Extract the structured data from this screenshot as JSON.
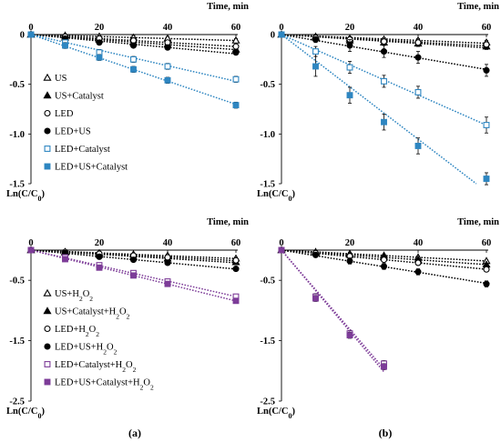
{
  "figure": {
    "panel_tags": [
      "(a)",
      "(b)"
    ]
  },
  "chart_data": [
    {
      "type": "line",
      "xlabel": "Time, min",
      "ylabel": "Ln(C/C0)",
      "ylabel_main": "Ln(C/C",
      "ylabel_sub": "0",
      "ylabel_tail": ")",
      "xlim": [
        0,
        60
      ],
      "ylim": [
        -1.5,
        0
      ],
      "x_ticks": [
        0,
        20,
        40,
        60
      ],
      "y_ticks": [
        0,
        -0.5,
        -1.0,
        -1.5
      ],
      "y_tick_labels": [
        "0",
        "-0.5",
        "-1.0",
        "-1.5"
      ],
      "legend_position": "left",
      "series": [
        {
          "name": "US",
          "marker": "triangle-open",
          "color": "#000000",
          "x": [
            0,
            10,
            20,
            30,
            40,
            60
          ],
          "y": [
            0,
            -0.01,
            -0.02,
            -0.03,
            -0.04,
            -0.06
          ],
          "err": [
            0.01,
            0.01,
            0.02,
            0.02,
            0.02,
            0.02
          ]
        },
        {
          "name": "US+Catalyst",
          "marker": "triangle-filled",
          "color": "#000000",
          "x": [
            0,
            10,
            20,
            30,
            40,
            60
          ],
          "y": [
            0,
            -0.03,
            -0.05,
            -0.08,
            -0.1,
            -0.15
          ],
          "err": [
            0.01,
            0.02,
            0.02,
            0.02,
            0.02,
            0.02
          ]
        },
        {
          "name": "LED",
          "marker": "circle-open",
          "color": "#000000",
          "x": [
            0,
            10,
            20,
            30,
            40,
            60
          ],
          "y": [
            0,
            -0.02,
            -0.04,
            -0.06,
            -0.08,
            -0.12
          ],
          "err": [
            0.01,
            0.02,
            0.02,
            0.02,
            0.02,
            0.02
          ]
        },
        {
          "name": "LED+US",
          "marker": "circle-filled",
          "color": "#000000",
          "x": [
            0,
            10,
            20,
            30,
            40,
            60
          ],
          "y": [
            0,
            -0.04,
            -0.08,
            -0.11,
            -0.13,
            -0.18
          ],
          "err": [
            0.01,
            0.02,
            0.02,
            0.02,
            0.02,
            0.02
          ]
        },
        {
          "name": "LED+Catalyst",
          "marker": "square-open",
          "color": "#2e86c1",
          "x": [
            0,
            10,
            20,
            30,
            40,
            60
          ],
          "y": [
            0,
            -0.08,
            -0.18,
            -0.25,
            -0.32,
            -0.45
          ],
          "err": [
            0.01,
            0.03,
            0.03,
            0.03,
            0.03,
            0.03
          ]
        },
        {
          "name": "LED+US+Catalyst",
          "marker": "square-filled",
          "color": "#2e86c1",
          "x": [
            0,
            10,
            20,
            30,
            40,
            60
          ],
          "y": [
            0,
            -0.11,
            -0.23,
            -0.35,
            -0.46,
            -0.71
          ],
          "err": [
            0.01,
            0.03,
            0.03,
            0.03,
            0.03,
            0.03
          ]
        }
      ]
    },
    {
      "type": "line",
      "xlabel": "Time, min",
      "ylabel": "Ln(C/C0)",
      "ylabel_main": "Ln(C/C",
      "ylabel_sub": "0",
      "ylabel_tail": ")",
      "xlim": [
        0,
        60
      ],
      "ylim": [
        -1.5,
        0
      ],
      "x_ticks": [
        0,
        20,
        40,
        60
      ],
      "y_ticks": [
        0,
        -0.5,
        -1.0,
        -1.5
      ],
      "y_tick_labels": [
        "0",
        "-0.5",
        "-1.0",
        "-1.5"
      ],
      "series": [
        {
          "marker": "triangle-open",
          "color": "#000000",
          "x": [
            0,
            10,
            20,
            30,
            40,
            60
          ],
          "y": [
            0,
            -0.02,
            -0.04,
            -0.05,
            -0.06,
            -0.08
          ],
          "err": [
            0.01,
            0.02,
            0.02,
            0.02,
            0.02,
            0.02
          ]
        },
        {
          "marker": "triangle-filled",
          "color": "#000000",
          "x": [
            0,
            10,
            20,
            30,
            40,
            60
          ],
          "y": [
            0,
            -0.03,
            -0.06,
            -0.08,
            -0.09,
            -0.12
          ],
          "err": [
            0.01,
            0.02,
            0.03,
            0.03,
            0.03,
            0.03
          ]
        },
        {
          "marker": "circle-open",
          "color": "#000000",
          "x": [
            0,
            10,
            20,
            30,
            40,
            60
          ],
          "y": [
            0,
            -0.03,
            -0.05,
            -0.07,
            -0.08,
            -0.1
          ],
          "err": [
            0.01,
            0.02,
            0.02,
            0.02,
            0.02,
            0.02
          ]
        },
        {
          "marker": "circle-filled",
          "color": "#000000",
          "x": [
            0,
            10,
            20,
            30,
            40,
            60
          ],
          "y": [
            0,
            -0.05,
            -0.11,
            -0.17,
            -0.23,
            -0.36
          ],
          "err": [
            0.01,
            0.03,
            0.06,
            0.06,
            0.06,
            0.06
          ]
        },
        {
          "marker": "square-open",
          "color": "#2e86c1",
          "x": [
            0,
            10,
            20,
            30,
            40,
            60
          ],
          "y": [
            0,
            -0.17,
            -0.33,
            -0.47,
            -0.58,
            -0.91
          ],
          "err": [
            0.01,
            0.05,
            0.06,
            0.06,
            0.06,
            0.08
          ]
        },
        {
          "marker": "square-filled",
          "color": "#2e86c1",
          "x": [
            0,
            10,
            20,
            30,
            40,
            60
          ],
          "y": [
            0,
            -0.32,
            -0.61,
            -0.88,
            -1.12,
            -1.45
          ],
          "err": [
            0.01,
            0.1,
            0.08,
            0.08,
            0.08,
            0.06
          ]
        }
      ]
    },
    {
      "type": "line",
      "xlabel": "Time, min",
      "ylabel": "Ln(C/C0)",
      "ylabel_main": "Ln(C/C",
      "ylabel_sub": "0",
      "ylabel_tail": ")",
      "xlim": [
        0,
        60
      ],
      "ylim": [
        -2.5,
        0
      ],
      "x_ticks": [
        0,
        20,
        40,
        60
      ],
      "y_ticks": [
        -0.5,
        -1.5,
        -2.5
      ],
      "y_tick_labels": [
        "-0.5",
        "-1.5",
        "-2.5"
      ],
      "legend_position": "left",
      "series": [
        {
          "name": "US+H2O2",
          "label_main": "US+H",
          "label_sub": "2",
          "label_mid": "O",
          "label_sub2": "2",
          "marker": "triangle-open",
          "color": "#000000",
          "x": [
            0,
            10,
            20,
            30,
            40,
            60
          ],
          "y": [
            0,
            -0.03,
            -0.05,
            -0.07,
            -0.09,
            -0.14
          ],
          "err": [
            0.01,
            0.02,
            0.02,
            0.02,
            0.02,
            0.02
          ]
        },
        {
          "name": "US+Catalyst+H2O2",
          "label_main": "US+Catalyst+H",
          "label_sub": "2",
          "label_mid": "O",
          "label_sub2": "2",
          "marker": "triangle-filled",
          "color": "#000000",
          "x": [
            0,
            10,
            20,
            30,
            40,
            60
          ],
          "y": [
            0,
            -0.04,
            -0.08,
            -0.11,
            -0.14,
            -0.2
          ],
          "err": [
            0.01,
            0.02,
            0.02,
            0.02,
            0.02,
            0.02
          ]
        },
        {
          "name": "LED+H2O2",
          "label_main": "LED+H",
          "label_sub": "2",
          "label_mid": "O",
          "label_sub2": "2",
          "marker": "circle-open",
          "color": "#000000",
          "x": [
            0,
            10,
            20,
            30,
            40,
            60
          ],
          "y": [
            0,
            -0.03,
            -0.06,
            -0.09,
            -0.12,
            -0.17
          ],
          "err": [
            0.01,
            0.02,
            0.02,
            0.02,
            0.02,
            0.02
          ]
        },
        {
          "name": "LED+US+H2O2",
          "label_main": "LED+US+H",
          "label_sub": "2",
          "label_mid": "O",
          "label_sub2": "2",
          "marker": "circle-filled",
          "color": "#000000",
          "x": [
            0,
            10,
            20,
            30,
            40,
            60
          ],
          "y": [
            0,
            -0.05,
            -0.11,
            -0.16,
            -0.21,
            -0.31
          ],
          "err": [
            0.01,
            0.02,
            0.02,
            0.02,
            0.02,
            0.02
          ]
        },
        {
          "name": "LED+Catalyst+H2O2",
          "label_main": "LED+Catalyst+H",
          "label_sub": "2",
          "label_mid": "O",
          "label_sub2": "2",
          "marker": "square-open",
          "color": "#7d3c98",
          "x": [
            0,
            10,
            20,
            30,
            40,
            60
          ],
          "y": [
            0,
            -0.12,
            -0.25,
            -0.38,
            -0.52,
            -0.77
          ],
          "err": [
            0.01,
            0.04,
            0.04,
            0.04,
            0.04,
            0.04
          ]
        },
        {
          "name": "LED+US+Catalyst+H2O2",
          "label_main": "LED+US+Catalyst+H",
          "label_sub": "2",
          "label_mid": "O",
          "label_sub2": "2",
          "marker": "square-filled",
          "color": "#7d3c98",
          "x": [
            0,
            10,
            20,
            30,
            40,
            60
          ],
          "y": [
            0,
            -0.15,
            -0.29,
            -0.42,
            -0.56,
            -0.84
          ],
          "err": [
            0.01,
            0.04,
            0.04,
            0.04,
            0.04,
            0.04
          ]
        }
      ]
    },
    {
      "type": "line",
      "xlabel": "Time, min",
      "ylabel": "Ln(C/C0)",
      "ylabel_main": "Ln(C/C",
      "ylabel_sub": "0",
      "ylabel_tail": ")",
      "xlim": [
        0,
        60
      ],
      "ylim": [
        -2.5,
        0
      ],
      "x_ticks": [
        0,
        20,
        40,
        60
      ],
      "y_ticks": [
        -0.5,
        -1.5,
        -2.5
      ],
      "y_tick_labels": [
        "-0.5",
        "-1.5",
        "-2.5"
      ],
      "series": [
        {
          "marker": "triangle-open",
          "color": "#000000",
          "x": [
            0,
            10,
            20,
            30,
            40,
            60
          ],
          "y": [
            0,
            -0.03,
            -0.06,
            -0.09,
            -0.12,
            -0.18
          ],
          "err": [
            0.01,
            0.02,
            0.02,
            0.02,
            0.02,
            0.02
          ]
        },
        {
          "marker": "triangle-filled",
          "color": "#000000",
          "x": [
            0,
            10,
            20,
            30,
            40,
            60
          ],
          "y": [
            0,
            -0.04,
            -0.08,
            -0.12,
            -0.16,
            -0.24
          ],
          "err": [
            0.01,
            0.02,
            0.02,
            0.02,
            0.02,
            0.02
          ]
        },
        {
          "marker": "circle-open",
          "color": "#000000",
          "x": [
            0,
            10,
            20,
            30,
            40,
            60
          ],
          "y": [
            0,
            -0.05,
            -0.1,
            -0.16,
            -0.21,
            -0.32
          ],
          "err": [
            0.01,
            0.02,
            0.03,
            0.03,
            0.03,
            0.03
          ]
        },
        {
          "marker": "circle-filled",
          "color": "#000000",
          "x": [
            0,
            10,
            20,
            30,
            40,
            60
          ],
          "y": [
            0,
            -0.08,
            -0.18,
            -0.27,
            -0.36,
            -0.56
          ],
          "err": [
            0.01,
            0.04,
            0.05,
            0.05,
            0.05,
            0.05
          ]
        },
        {
          "marker": "square-open",
          "color": "#7d3c98",
          "x": [
            0,
            10,
            20,
            30
          ],
          "y": [
            0,
            -0.77,
            -1.38,
            -1.88
          ],
          "err": [
            0.01,
            0.05,
            0.05,
            0.05
          ]
        },
        {
          "marker": "square-filled",
          "color": "#7d3c98",
          "x": [
            0,
            10,
            20,
            30
          ],
          "y": [
            0,
            -0.8,
            -1.41,
            -1.93
          ],
          "err": [
            0.01,
            0.05,
            0.05,
            0.05
          ]
        }
      ]
    }
  ]
}
